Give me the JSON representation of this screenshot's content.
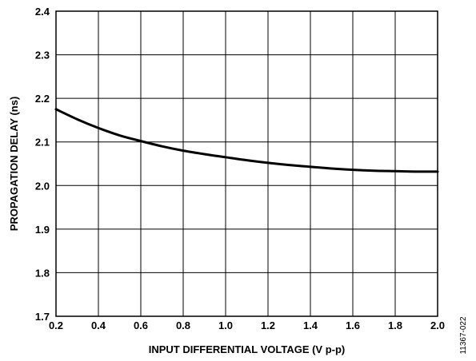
{
  "chart_data": {
    "type": "line",
    "title": "",
    "xlabel": "INPUT DIFFERENTIAL VOLTAGE (V p-p)",
    "ylabel": "PROPAGATION DELAY (ns)",
    "xlim": [
      0.2,
      2.0
    ],
    "ylim": [
      1.7,
      2.4
    ],
    "grid": true,
    "legend": "none",
    "x_ticks": [
      "0.2",
      "0.4",
      "0.6",
      "0.8",
      "1.0",
      "1.2",
      "1.4",
      "1.6",
      "1.8",
      "2.0"
    ],
    "y_ticks": [
      "1.7",
      "1.8",
      "1.9",
      "2.0",
      "2.1",
      "2.2",
      "2.3",
      "2.4"
    ],
    "series": [
      {
        "color": "#000000",
        "x": [
          0.2,
          0.3,
          0.4,
          0.5,
          0.6,
          0.7,
          0.8,
          0.9,
          1.0,
          1.1,
          1.2,
          1.3,
          1.4,
          1.5,
          1.6,
          1.7,
          1.8,
          1.9,
          2.0
        ],
        "y": [
          2.175,
          2.152,
          2.132,
          2.115,
          2.102,
          2.09,
          2.08,
          2.072,
          2.065,
          2.058,
          2.052,
          2.047,
          2.043,
          2.039,
          2.036,
          2.034,
          2.033,
          2.032,
          2.032
        ]
      }
    ]
  },
  "figure_id": "11367-022"
}
